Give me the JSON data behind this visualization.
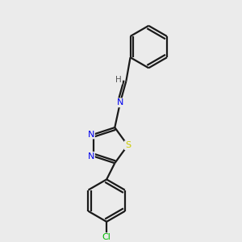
{
  "background_color": "#ebebeb",
  "bond_color": "#1a1a1a",
  "atom_colors": {
    "N": "#0000ee",
    "S": "#cccc00",
    "Cl": "#00bb00",
    "H": "#555555"
  },
  "figsize": [
    3.0,
    3.0
  ],
  "dpi": 100,
  "xlim": [
    0,
    10
  ],
  "ylim": [
    0,
    10
  ]
}
